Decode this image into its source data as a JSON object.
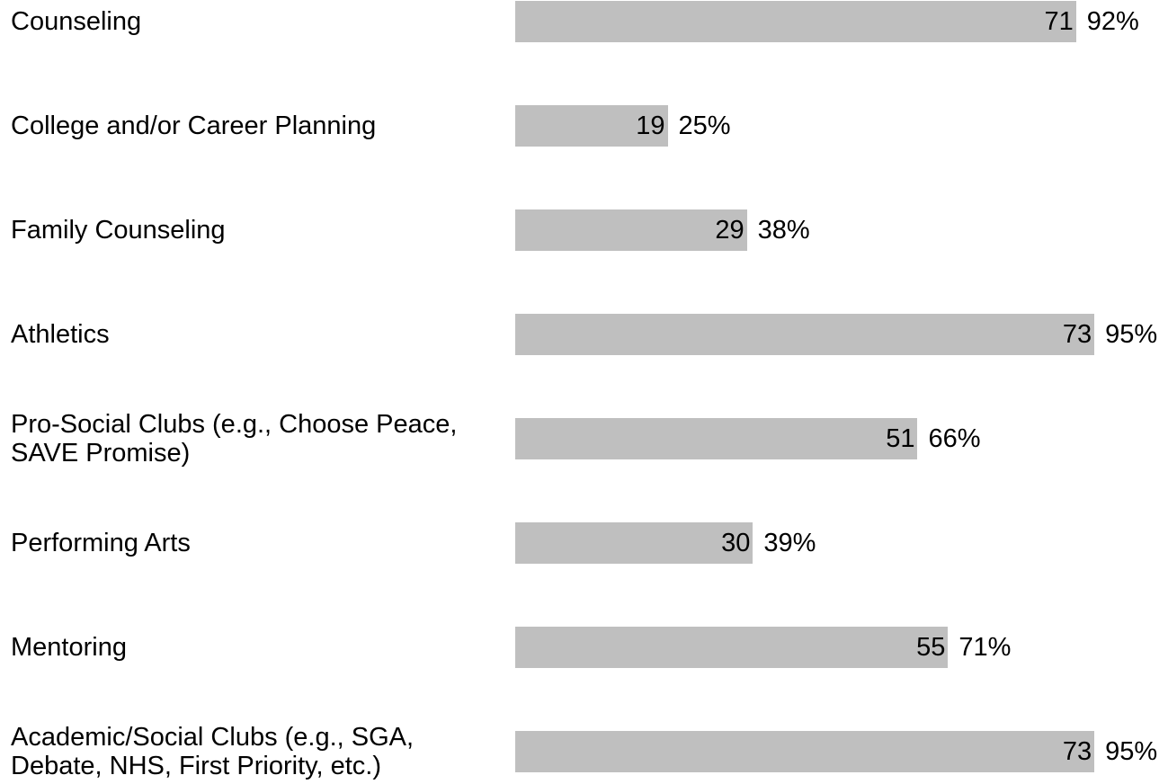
{
  "chart_data": {
    "type": "bar",
    "orientation": "horizontal",
    "categories": [
      "Counseling",
      "College and/or Career Planning",
      "Family Counseling",
      "Athletics",
      "Pro-Social Clubs (e.g., Choose Peace, SAVE Promise)",
      "Performing Arts",
      "Mentoring",
      "Academic/Social Clubs (e.g., SGA, Debate, NHS, First Priority, etc.)"
    ],
    "values": [
      92,
      25,
      38,
      95,
      66,
      39,
      71,
      95
    ],
    "value_labels": [
      "92%",
      "25%",
      "38%",
      "95%",
      "66%",
      "39%",
      "71%",
      "95%"
    ],
    "counts": [
      71,
      19,
      29,
      73,
      51,
      30,
      55,
      73
    ],
    "color": "#bfbfbf",
    "xlim": [
      0,
      100
    ]
  }
}
